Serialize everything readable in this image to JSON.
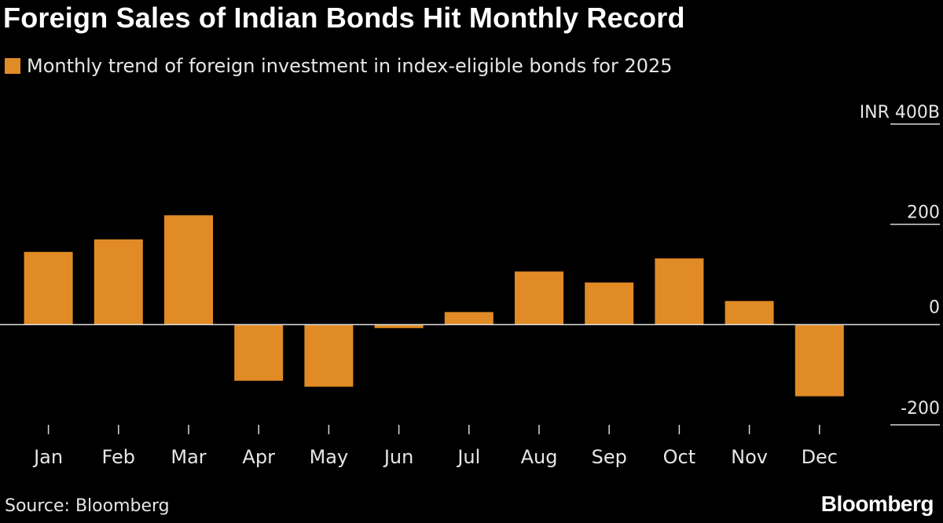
{
  "chart_data": {
    "type": "bar",
    "title": "Foreign Sales of Indian Bonds Hit Monthly Record",
    "subtitle": "Monthly trend of foreign investment in index-eligible bonds for 2025",
    "categories": [
      "Jan",
      "Feb",
      "Mar",
      "Apr",
      "May",
      "Jun",
      "Jul",
      "Aug",
      "Sep",
      "Oct",
      "Nov",
      "Dec"
    ],
    "series": [
      {
        "name": "Monthly trend of foreign investment in index-eligible bonds for 2025",
        "values": [
          145,
          170,
          218,
          -112,
          -124,
          -7,
          25,
          106,
          84,
          132,
          47,
          -143
        ],
        "color": "#E08B25"
      }
    ],
    "ylim": [
      -200,
      400
    ],
    "yticks": [
      400,
      200,
      0,
      -200
    ],
    "ytick_labels": [
      "INR 400B",
      "200",
      "0",
      "-200"
    ],
    "xlabel": "",
    "ylabel": "",
    "legend_position": "top-left",
    "source": "Source: Bloomberg",
    "brand": "Bloomberg"
  }
}
